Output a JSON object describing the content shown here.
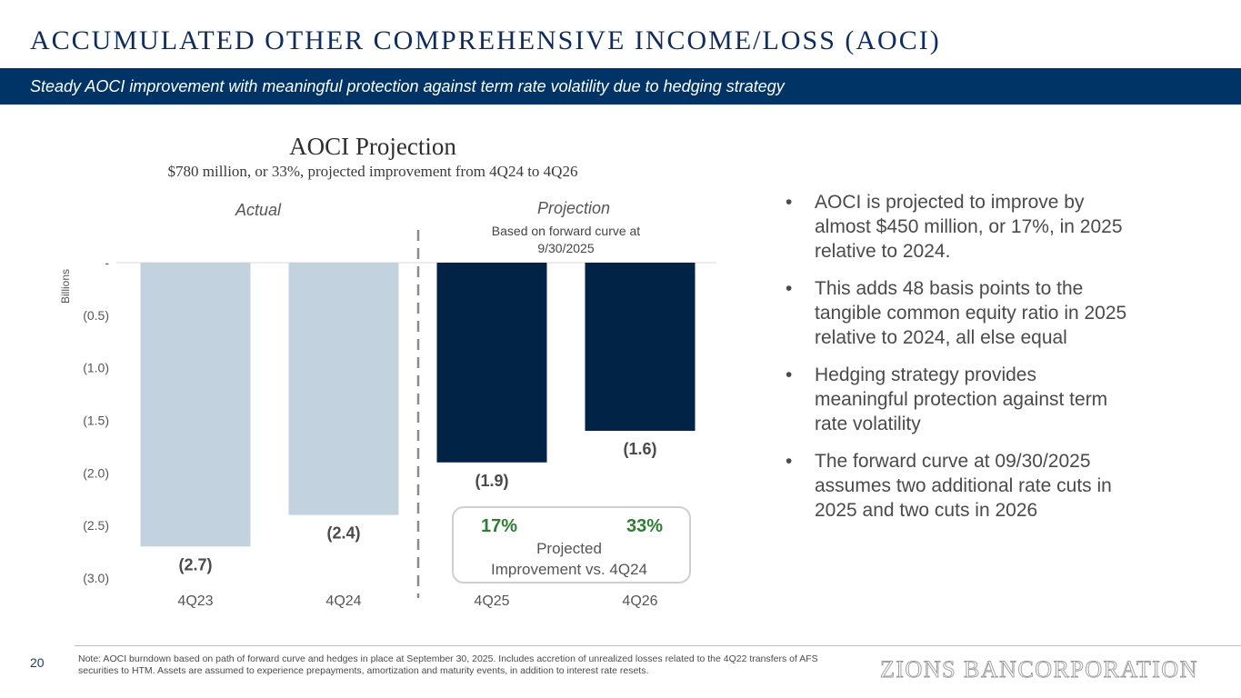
{
  "header": {
    "title": "ACCUMULATED OTHER COMPREHENSIVE INCOME/LOSS (AOCI)",
    "banner": "Steady AOCI improvement with meaningful protection against term rate volatility due to hedging strategy"
  },
  "chart_labels": {
    "actual": "Actual",
    "projection": "Projection",
    "forward_note": "Based on forward curve at 9/30/2025"
  },
  "chart_data": {
    "type": "bar",
    "title": "AOCI Projection",
    "subtitle": "$780 million, or 33%, projected improvement from 4Q24 to 4Q26",
    "ylabel": "Billions",
    "xlabel": "",
    "ylim": [
      -3.0,
      0
    ],
    "yticks": [
      0,
      -0.5,
      -1.0,
      -1.5,
      -2.0,
      -2.5,
      -3.0
    ],
    "ytick_labels": [
      "-",
      "(0.5)",
      "(1.0)",
      "(1.5)",
      "(2.0)",
      "(2.5)",
      "(3.0)"
    ],
    "categories": [
      "4Q23",
      "4Q24",
      "4Q25",
      "4Q26"
    ],
    "values": [
      -2.7,
      -2.4,
      -1.9,
      -1.6
    ],
    "value_labels": [
      "(2.7)",
      "(2.4)",
      "(1.9)",
      "(1.6)"
    ],
    "bar_kind": [
      "actual",
      "actual",
      "projection",
      "projection"
    ],
    "colors": {
      "actual": "#c2d3df",
      "projection": "#012345"
    },
    "improvement_box": {
      "pct_4q25": "17%",
      "pct_4q26": "33%",
      "label": "Projected Improvement vs. 4Q24"
    }
  },
  "bullets": [
    "AOCI is projected to improve by almost $450 million, or 17%, in 2025 relative to 2024.",
    "This adds 48 basis points to the tangible common equity ratio in 2025 relative to 2024, all else equal",
    "Hedging strategy provides meaningful protection against term rate volatility",
    "The forward curve at 09/30/2025 assumes two additional rate cuts in 2025 and two cuts in 2026"
  ],
  "footer": {
    "page_number": "20",
    "note": "Note: AOCI burndown based on path of forward curve and hedges in place at September 30, 2025. Includes accretion of unrealized losses related to the 4Q22 transfers of AFS securities to HTM. Assets are assumed to experience prepayments, amortization and maturity events, in addition to interest rate resets.",
    "logo": "ZIONS BANCORPORATION"
  },
  "colors": {
    "title": "#0e2d5c",
    "banner": "#003366",
    "accent_green": "#2e7d32"
  }
}
